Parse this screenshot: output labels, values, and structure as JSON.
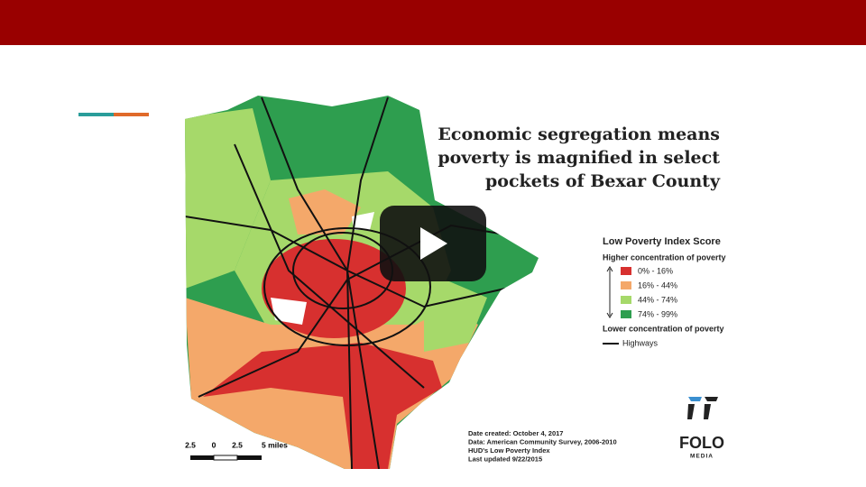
{
  "slide": {
    "title_lines": [
      "Economic segregation means",
      "poverty is magnified in select",
      "pockets of Bexar County"
    ],
    "legend": {
      "title": "Low Poverty Index Score",
      "top_label": "Higher concentration of poverty",
      "items": [
        {
          "label": "0% - 16%",
          "color": "#d7302f"
        },
        {
          "label": "16% - 44%",
          "color": "#f4a86a"
        },
        {
          "label": "44% - 74%",
          "color": "#a6d96a"
        },
        {
          "label": "74% - 99%",
          "color": "#2e9e4f"
        }
      ],
      "bottom_label": "Lower concentration of poverty",
      "highway_label": "Highways"
    },
    "notes": [
      "Date created: October 4, 2017",
      "Data: American Community Survey, 2006-2010",
      "HUD's Low Poverty Index",
      "Last updated 9/22/2015"
    ],
    "scale_bar": [
      "2.5",
      "0",
      "2.5",
      "5 miles"
    ],
    "logo": {
      "name": "FOLO",
      "tagline": "MEDIA"
    }
  }
}
